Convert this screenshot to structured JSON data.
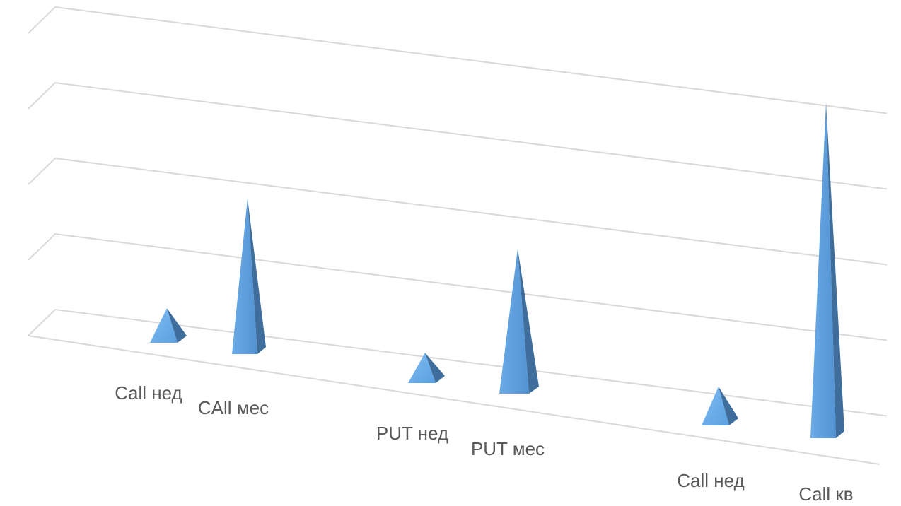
{
  "chart_data": {
    "type": "bar",
    "shape": "3d-pyramid",
    "categories": [
      "Call нед",
      "CAll мес",
      "PUT нед",
      "PUT мес",
      "Call нед",
      "Call кв"
    ],
    "values": [
      0.42,
      2.1,
      0.36,
      1.95,
      0.48,
      4.6
    ],
    "ylim": [
      0,
      5
    ],
    "gridlines": true,
    "legend": "none",
    "colors": {
      "bar": "#5b9bd5",
      "gridline": "#d9d9d9",
      "label": "#595959"
    }
  }
}
